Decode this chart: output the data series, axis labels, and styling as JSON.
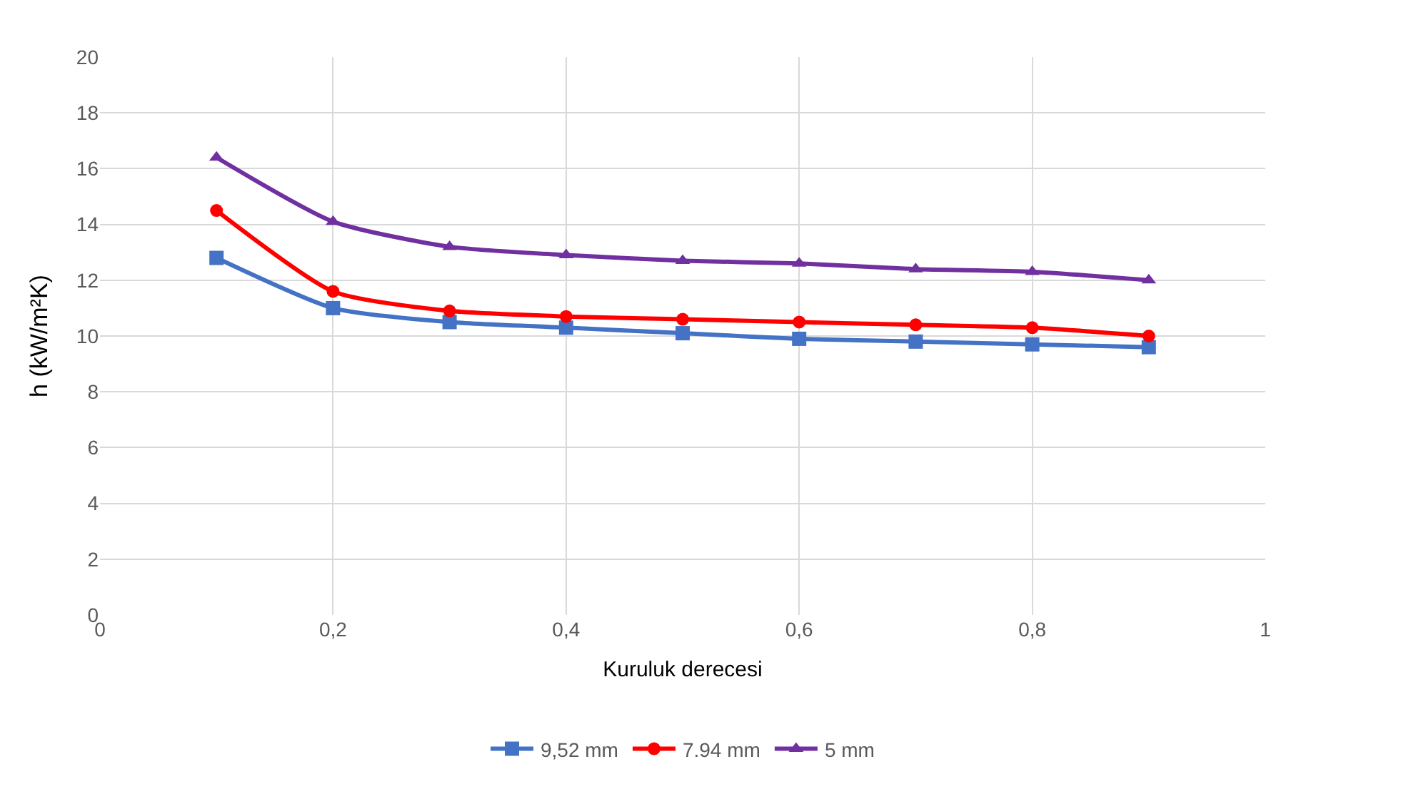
{
  "chart_data": {
    "type": "line",
    "xlabel": "Kuruluk derecesi",
    "ylabel": "h (kW/m²K)",
    "x": [
      0.1,
      0.2,
      0.3,
      0.4,
      0.5,
      0.6,
      0.7,
      0.8,
      0.9
    ],
    "series": [
      {
        "name": "9,52 mm",
        "color": "#4472c4",
        "marker": "square",
        "values": [
          12.8,
          11.0,
          10.5,
          10.3,
          10.1,
          9.9,
          9.8,
          9.7,
          9.6
        ]
      },
      {
        "name": "7.94 mm",
        "color": "#ff0000",
        "marker": "circle",
        "values": [
          14.5,
          11.6,
          10.9,
          10.7,
          10.6,
          10.5,
          10.4,
          10.3,
          10.0
        ]
      },
      {
        "name": "5 mm",
        "color": "#7030a0",
        "marker": "triangle",
        "values": [
          16.4,
          14.1,
          13.2,
          12.9,
          12.7,
          12.6,
          12.4,
          12.3,
          12.0
        ]
      }
    ],
    "xlim": [
      0,
      1
    ],
    "xticks": [
      0,
      {
        "value": 0.2,
        "label": "0,2"
      },
      {
        "value": 0.4,
        "label": "0,4"
      },
      {
        "value": 0.6,
        "label": "0,6"
      },
      {
        "value": 0.8,
        "label": "0,8"
      },
      1
    ],
    "ylim": [
      0,
      20
    ],
    "yticks": [
      0,
      2,
      4,
      6,
      8,
      10,
      12,
      14,
      16,
      18,
      20
    ],
    "grid": true,
    "legend": "bottom",
    "line_style": "solid"
  }
}
